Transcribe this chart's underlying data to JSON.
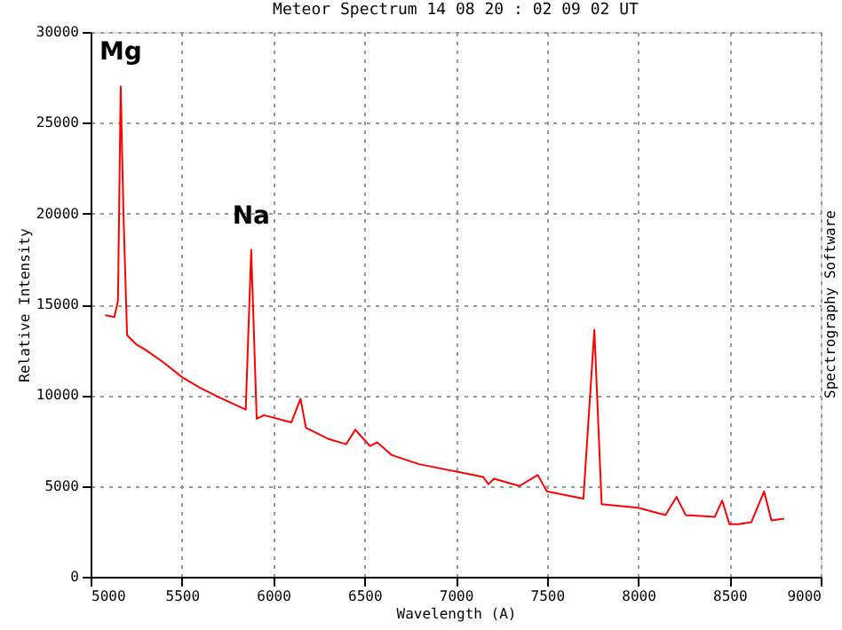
{
  "chart_data": {
    "type": "line",
    "title": "Meteor Spectrum 14 08 20 : 02 09 02 UT",
    "xlabel": "Wavelength (A)",
    "ylabel": "Relative Intensity",
    "x": [
      5080,
      5130,
      5150,
      5165,
      5180,
      5200,
      5250,
      5300,
      5400,
      5500,
      5600,
      5700,
      5850,
      5880,
      5910,
      5950,
      6100,
      6150,
      6180,
      6300,
      6400,
      6450,
      6530,
      6570,
      6650,
      6800,
      7000,
      7150,
      7180,
      7210,
      7350,
      7450,
      7500,
      7700,
      7760,
      7800,
      8000,
      8150,
      8210,
      8260,
      8420,
      8460,
      8500,
      8550,
      8620,
      8690,
      8730,
      8800
    ],
    "series": [
      {
        "color": "#ff0000",
        "values": [
          14400,
          14300,
          15200,
          27000,
          20000,
          13300,
          12800,
          12500,
          11800,
          11000,
          10400,
          9900,
          9200,
          18000,
          8700,
          8900,
          8500,
          9800,
          8200,
          7600,
          7300,
          8100,
          7200,
          7400,
          6700,
          6200,
          5800,
          5500,
          5100,
          5400,
          5000,
          5600,
          4700,
          4300,
          13600,
          4000,
          3800,
          3400,
          4400,
          3400,
          3300,
          4200,
          2900,
          2900,
          3000,
          4700,
          3100,
          3200
        ]
      }
    ],
    "xlim": [
      5000,
      9000
    ],
    "ylim": [
      0,
      30000
    ],
    "xticks": [
      5000,
      5500,
      6000,
      6500,
      7000,
      7500,
      8000,
      8500,
      9000
    ],
    "yticks": [
      0,
      5000,
      10000,
      15000,
      20000,
      25000,
      30000
    ],
    "grid": true,
    "line_style": "solid",
    "marker": "none",
    "annotations": [
      {
        "text": "Mg",
        "x": 5165,
        "y": 27000
      },
      {
        "text": "Na",
        "x": 5880,
        "y": 18000
      },
      "Spectrography Software"
    ]
  }
}
